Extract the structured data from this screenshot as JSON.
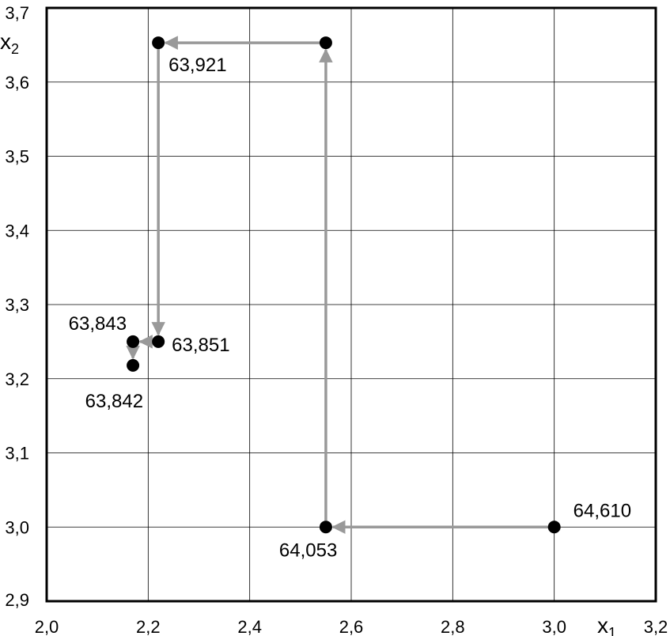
{
  "chart_data": {
    "type": "scatter",
    "title": "",
    "xlabel": "x",
    "xlabel_sub": "1",
    "ylabel": "x",
    "ylabel_sub": "2",
    "xlim": [
      2.0,
      3.2
    ],
    "ylim": [
      2.9,
      3.7
    ],
    "xticks": [
      "2,0",
      "2,2",
      "2,4",
      "2,6",
      "2,8",
      "3,0",
      "3,2"
    ],
    "xtick_values": [
      2.0,
      2.2,
      2.4,
      2.6,
      2.8,
      3.0,
      3.2
    ],
    "yticks": [
      "2,9",
      "3,0",
      "3,1",
      "3,2",
      "3,3",
      "3,4",
      "3,5",
      "3,6",
      "3,7"
    ],
    "ytick_values": [
      2.9,
      3.0,
      3.1,
      3.2,
      3.3,
      3.4,
      3.5,
      3.6,
      3.7
    ],
    "grid": true,
    "points": [
      {
        "x": 3.0,
        "y": 3.0,
        "label": "64,610"
      },
      {
        "x": 2.55,
        "y": 3.0,
        "label": "64,053"
      },
      {
        "x": 2.55,
        "y": 3.653,
        "label": ""
      },
      {
        "x": 2.22,
        "y": 3.653,
        "label": "63,921"
      },
      {
        "x": 2.22,
        "y": 3.25,
        "label": "63,851"
      },
      {
        "x": 2.17,
        "y": 3.25,
        "label": "63,843"
      },
      {
        "x": 2.17,
        "y": 3.218,
        "label": "63,842"
      }
    ],
    "arrow_color": "#999999",
    "point_color": "#000000"
  }
}
